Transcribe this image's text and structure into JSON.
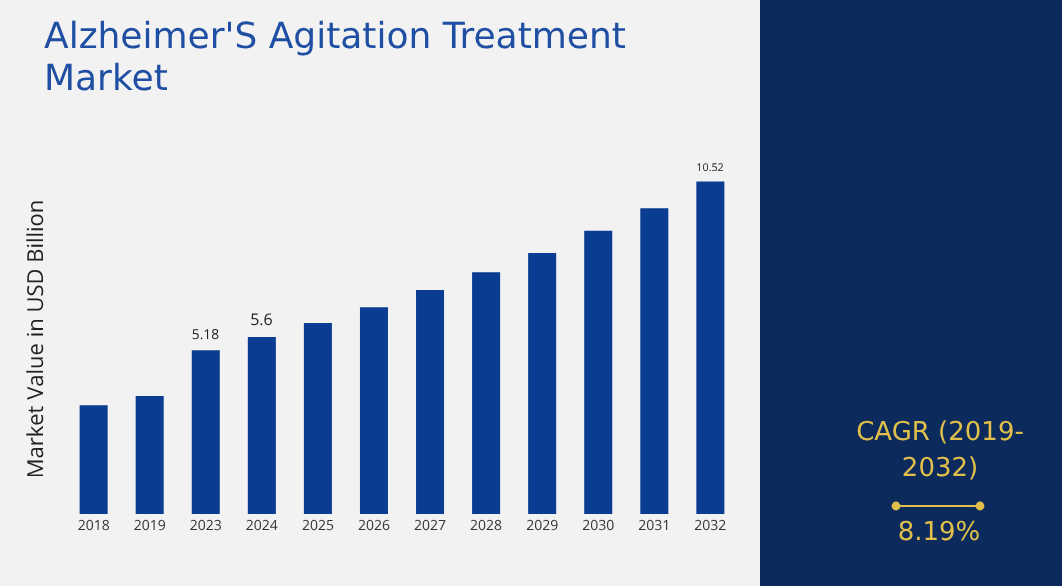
{
  "chart_data": {
    "type": "bar",
    "title": "Alzheimer'S Agitation Treatment Market",
    "ylabel": "Market Value in USD Billion",
    "categories": [
      "2018",
      "2019",
      "2023",
      "2024",
      "2025",
      "2026",
      "2027",
      "2028",
      "2029",
      "2030",
      "2031",
      "2032"
    ],
    "values": [
      3.44,
      3.73,
      5.18,
      5.6,
      6.04,
      6.54,
      7.09,
      7.65,
      8.26,
      8.96,
      9.67,
      10.52
    ],
    "value_labels": [
      null,
      null,
      "5.18",
      "5.6",
      null,
      null,
      null,
      null,
      null,
      null,
      null,
      "10.52"
    ],
    "color": "#0a3d91",
    "tick_labels": "x",
    "annotations": [
      "CAGR (2019-2032)",
      "8.19%"
    ]
  }
}
